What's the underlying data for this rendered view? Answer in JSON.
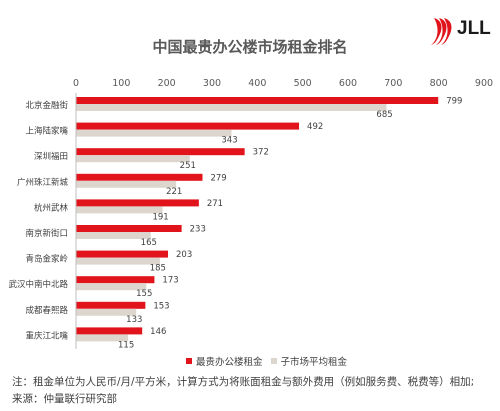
{
  "chart_data": {
    "type": "bar",
    "orientation": "horizontal",
    "title": "中国最贵办公楼市场租金排名",
    "categories": [
      "北京金融街",
      "上海陆家嘴",
      "深圳福田",
      "广州珠江新城",
      "杭州武林",
      "南京新街口",
      "青岛金家岭",
      "武汉中南中北路",
      "成都春熙路",
      "重庆江北嘴"
    ],
    "series": [
      {
        "name": "最贵办公楼租金",
        "color": "#e1141b",
        "values": [
          799,
          492,
          372,
          279,
          271,
          233,
          203,
          173,
          153,
          146
        ]
      },
      {
        "name": "子市场平均租金",
        "color": "#ddd6cf",
        "values": [
          685,
          343,
          251,
          221,
          191,
          165,
          185,
          155,
          133,
          115
        ]
      }
    ],
    "xlim": [
      0,
      900
    ],
    "xticks": [
      0,
      100,
      200,
      300,
      400,
      500,
      600,
      700,
      800,
      900
    ],
    "legend_position": "bottom",
    "grid": false
  },
  "logo": {
    "text": "JLL",
    "color": "#e1141b"
  },
  "notes": {
    "line1": "注：租金单位为人民币/月/平方米，计算方式为将账面租金与额外费用（例如服务费、税费等）相加;",
    "line2": "来源：仲量联行研究部"
  }
}
